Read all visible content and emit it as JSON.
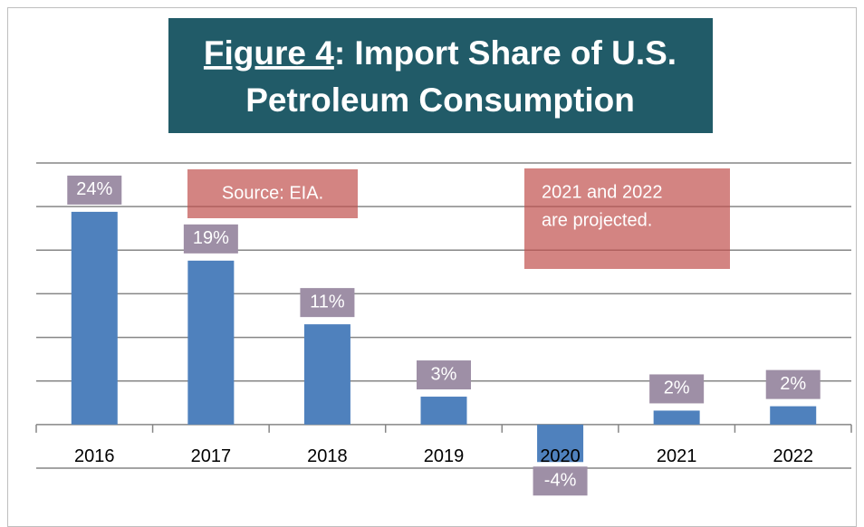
{
  "chart_data": {
    "type": "bar",
    "title": {
      "label": "Figure 4",
      "line1": ": Import Share of U.S.",
      "line2": "Petroleum Consumption"
    },
    "annotations": [
      [
        "Source: EIA."
      ],
      [
        "2021 and 2022",
        "are projected."
      ]
    ],
    "categories": [
      "2016",
      "2017",
      "2018",
      "2019",
      "2020",
      "2021",
      "2022"
    ],
    "values": [
      24.4,
      18.8,
      11.5,
      3.2,
      -4.3,
      1.6,
      2.1
    ],
    "value_labels": [
      "24%",
      "19%",
      "11%",
      "3%",
      "-4%",
      "2%",
      "2%"
    ],
    "color": "#4f81bd",
    "ylim": [
      -5,
      30
    ],
    "yticks": [
      -5,
      0,
      5,
      10,
      15,
      20,
      25,
      30
    ],
    "grid": true
  }
}
